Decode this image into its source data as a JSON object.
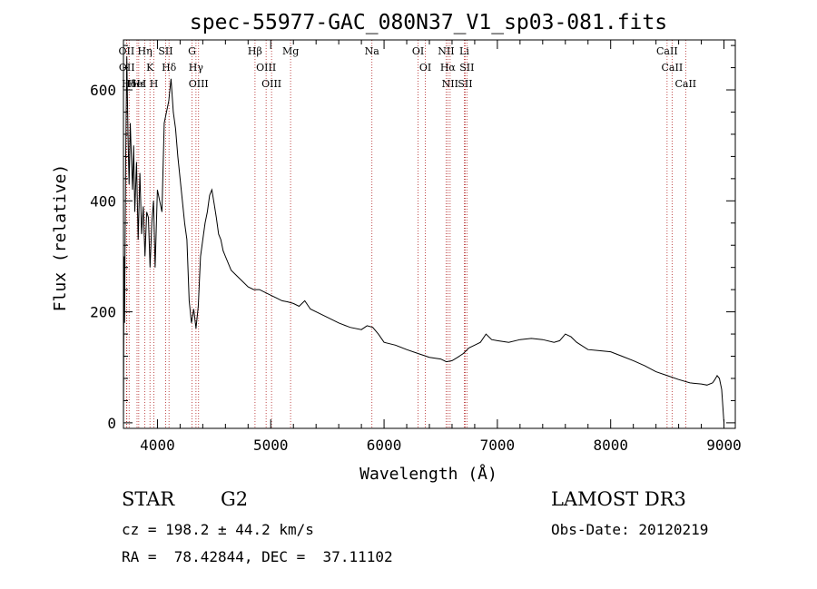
{
  "chart_data": {
    "type": "line",
    "title": "spec-55977-GAC_080N37_V1_sp03-081.fits",
    "xlabel": "Wavelength (Å)",
    "ylabel": "Flux (relative)",
    "xlim": [
      3700,
      9100
    ],
    "ylim": [
      -10,
      690
    ],
    "x_ticks": [
      4000,
      5000,
      6000,
      7000,
      8000,
      9000
    ],
    "y_ticks": [
      0,
      200,
      400,
      600
    ],
    "grid": false,
    "series": [
      {
        "name": "flux",
        "x": [
          3700,
          3705,
          3710,
          3720,
          3730,
          3740,
          3750,
          3760,
          3770,
          3780,
          3790,
          3800,
          3815,
          3830,
          3845,
          3860,
          3875,
          3890,
          3905,
          3920,
          3935,
          3950,
          3965,
          3980,
          4000,
          4020,
          4040,
          4060,
          4080,
          4100,
          4120,
          4140,
          4160,
          4180,
          4200,
          4220,
          4240,
          4260,
          4280,
          4300,
          4320,
          4340,
          4360,
          4380,
          4400,
          4420,
          4440,
          4460,
          4480,
          4500,
          4520,
          4540,
          4560,
          4580,
          4600,
          4650,
          4700,
          4750,
          4800,
          4850,
          4900,
          4950,
          5000,
          5050,
          5100,
          5150,
          5200,
          5250,
          5300,
          5350,
          5400,
          5500,
          5600,
          5700,
          5800,
          5850,
          5900,
          5950,
          6000,
          6100,
          6200,
          6300,
          6400,
          6500,
          6550,
          6600,
          6650,
          6700,
          6750,
          6800,
          6850,
          6900,
          6950,
          7000,
          7100,
          7200,
          7300,
          7400,
          7500,
          7550,
          7600,
          7650,
          7700,
          7800,
          7900,
          8000,
          8100,
          8200,
          8300,
          8400,
          8500,
          8600,
          8700,
          8800,
          8850,
          8900,
          8920,
          8940,
          8960,
          8980,
          9000
        ],
        "y": [
          0,
          300,
          180,
          480,
          660,
          520,
          430,
          540,
          480,
          420,
          500,
          380,
          470,
          330,
          450,
          340,
          390,
          300,
          380,
          370,
          280,
          360,
          400,
          280,
          420,
          400,
          380,
          540,
          560,
          580,
          620,
          560,
          530,
          480,
          440,
          400,
          360,
          330,
          220,
          180,
          205,
          170,
          210,
          300,
          330,
          360,
          380,
          410,
          420,
          395,
          370,
          340,
          330,
          310,
          300,
          275,
          265,
          255,
          245,
          240,
          240,
          235,
          230,
          225,
          220,
          218,
          215,
          210,
          220,
          205,
          200,
          190,
          180,
          172,
          168,
          175,
          172,
          160,
          145,
          140,
          132,
          125,
          118,
          115,
          110,
          112,
          118,
          125,
          135,
          140,
          145,
          160,
          150,
          148,
          145,
          150,
          152,
          150,
          145,
          148,
          160,
          155,
          145,
          132,
          130,
          128,
          120,
          112,
          103,
          92,
          85,
          78,
          72,
          70,
          68,
          72,
          78,
          85,
          80,
          60,
          0
        ]
      }
    ],
    "line_markers": [
      {
        "label": "Hδ",
        "x": 3750
      },
      {
        "label": "HeI",
        "x": 3820
      },
      {
        "label": "K",
        "x": 3934
      },
      {
        "label": "Hδ",
        "x": 4102
      },
      {
        "label": "OII",
        "x": 3727
      },
      {
        "label": "Hε",
        "x": 3835
      },
      {
        "label": "SII",
        "x": 4072
      },
      {
        "label": "OII",
        "x": 3730
      },
      {
        "label": "Hη",
        "x": 3889
      },
      {
        "label": "H",
        "x": 3969
      },
      {
        "label": "OIII",
        "x": 4363
      },
      {
        "label": "Hγ",
        "x": 4340
      },
      {
        "label": "G",
        "x": 4305
      },
      {
        "label": "OIII",
        "x": 4959
      },
      {
        "label": "OIII",
        "x": 5007
      },
      {
        "label": "Hβ",
        "x": 4861
      },
      {
        "label": "Mg",
        "x": 5175
      },
      {
        "label": "Na",
        "x": 5893
      },
      {
        "label": "OI",
        "x": 6300
      },
      {
        "label": "OI",
        "x": 6364
      },
      {
        "label": "Hα",
        "x": 6563
      },
      {
        "label": "NII",
        "x": 6548
      },
      {
        "label": "NII",
        "x": 6583
      },
      {
        "label": "SII",
        "x": 6716
      },
      {
        "label": "Li",
        "x": 6708
      },
      {
        "label": "SII",
        "x": 6731
      },
      {
        "label": "CaII",
        "x": 8542
      },
      {
        "label": "CaII",
        "x": 8498
      },
      {
        "label": "CaII",
        "x": 8662
      }
    ],
    "marker_color": "#b22222",
    "line_color": "#000000"
  },
  "info": {
    "object_type": "STAR",
    "subclass": "G2",
    "survey": "LAMOST DR3",
    "cz": "cz = 198.2 ± 44.2 km/s",
    "obs_date": "Obs-Date: 20120219",
    "coords": "RA =  78.42844, DEC =  37.11102"
  }
}
